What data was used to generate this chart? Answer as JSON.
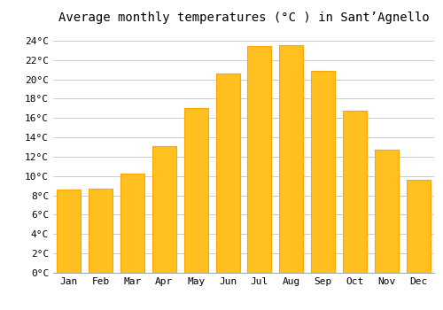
{
  "title": "Average monthly temperatures (°C ) in Sant’Agnello",
  "months": [
    "Jan",
    "Feb",
    "Mar",
    "Apr",
    "May",
    "Jun",
    "Jul",
    "Aug",
    "Sep",
    "Oct",
    "Nov",
    "Dec"
  ],
  "values": [
    8.6,
    8.7,
    10.3,
    13.1,
    17.0,
    20.6,
    23.4,
    23.5,
    20.9,
    16.8,
    12.7,
    9.6
  ],
  "bar_color": "#FFC020",
  "bar_edge_color": "#FFA500",
  "background_color": "#FFFFFF",
  "grid_color": "#CCCCCC",
  "ylim": [
    0,
    25
  ],
  "yticks": [
    0,
    2,
    4,
    6,
    8,
    10,
    12,
    14,
    16,
    18,
    20,
    22,
    24
  ],
  "title_fontsize": 10,
  "tick_fontsize": 8,
  "font_family": "monospace"
}
